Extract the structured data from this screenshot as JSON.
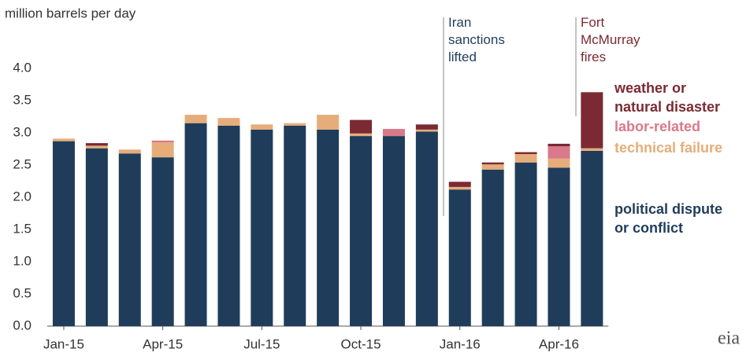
{
  "chart_data": {
    "type": "stacked_bar",
    "y_axis_label": "million barrels per day",
    "categories": [
      "Jan-15",
      null,
      null,
      "Apr-15",
      null,
      null,
      "Jul-15",
      null,
      null,
      "Oct-15",
      null,
      null,
      "Jan-16",
      null,
      null,
      "Apr-16",
      null
    ],
    "series": [
      {
        "name": "political dispute or conflict",
        "color": "#1f3d5a",
        "values": [
          2.87,
          2.76,
          2.68,
          2.62,
          3.15,
          3.11,
          3.05,
          3.11,
          3.05,
          2.95,
          2.95,
          3.02,
          2.12,
          2.43,
          2.54,
          2.46,
          2.72
        ]
      },
      {
        "name": "technical failure",
        "color": "#e6ad7a",
        "values": [
          0.04,
          0.04,
          0.06,
          0.23,
          0.13,
          0.12,
          0.08,
          0.04,
          0.23,
          0.04,
          0,
          0.03,
          0.04,
          0.08,
          0.13,
          0.14,
          0.04
        ]
      },
      {
        "name": "labor-related",
        "color": "#d9798a",
        "values": [
          0,
          0,
          0,
          0.03,
          0,
          0,
          0,
          0,
          0,
          0,
          0.11,
          0,
          0,
          0,
          0,
          0.19,
          0
        ]
      },
      {
        "name": "weather or natural disaster",
        "color": "#7b2a33",
        "values": [
          0,
          0.04,
          0,
          0,
          0,
          0,
          0,
          0,
          0,
          0.21,
          0,
          0.08,
          0.08,
          0.03,
          0.03,
          0.04,
          0.87
        ]
      }
    ],
    "ylim": [
      0,
      4
    ],
    "yticks": [
      {
        "value": 0,
        "label": "0.0"
      },
      {
        "value": 0.5,
        "label": "0.5"
      },
      {
        "value": 1,
        "label": "1.0"
      },
      {
        "value": 1.5,
        "label": "1.5"
      },
      {
        "value": 2,
        "label": "2.0"
      },
      {
        "value": 2.5,
        "label": "2.5"
      },
      {
        "value": 3,
        "label": "3.0"
      },
      {
        "value": 3.5,
        "label": "3.5"
      },
      {
        "value": 4,
        "label": "4.0"
      }
    ],
    "annotations": [
      {
        "text": "Iran sanctions lifted",
        "color": "#1f3d5a"
      },
      {
        "text": "Fort McMurray fires",
        "color": "#7b2a33"
      }
    ],
    "logo": "eia"
  }
}
